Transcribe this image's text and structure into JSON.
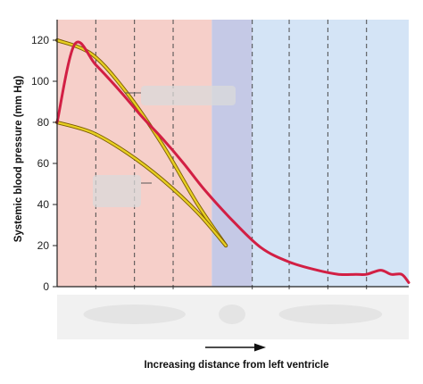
{
  "chart_data": {
    "type": "line",
    "title": "",
    "xlabel": "Increasing distance from left ventricle",
    "ylabel": "Systemic blood pressure (mm Hg)",
    "ylim": [
      0,
      130
    ],
    "yticks": [
      0,
      20,
      40,
      60,
      80,
      100,
      120
    ],
    "grid": false,
    "x_unit": "relative distance (0 = left ventricle, 1 = end of circulation)",
    "regions": [
      {
        "start": 0.0,
        "end": 0.44,
        "color": "#f6cfc9"
      },
      {
        "start": 0.44,
        "end": 0.555,
        "color": "#c5c9e6"
      },
      {
        "start": 0.555,
        "end": 1.0,
        "color": "#d4e4f6"
      }
    ],
    "dividers": [
      0.11,
      0.22,
      0.33,
      0.555,
      0.66,
      0.77,
      0.88
    ],
    "colors": {
      "pressure": "#d21f44",
      "envelope": "#e7cf22",
      "envelope_edge": "#7a5a00",
      "divider": "#4a4a4a",
      "label_placeholder": "#d9d9d9"
    },
    "series": [
      {
        "role": "pressure",
        "x": [
          0.0,
          0.05,
          0.11,
          0.18,
          0.24,
          0.3,
          0.36,
          0.42,
          0.5,
          0.58,
          0.66,
          0.74,
          0.8,
          0.85,
          0.88,
          0.92,
          0.95,
          0.98,
          1.0
        ],
        "y": [
          80,
          118,
          108,
          95,
          83,
          72,
          60,
          47,
          32,
          19,
          12,
          8,
          6,
          6,
          6,
          8,
          6,
          6,
          2
        ]
      },
      {
        "role": "systolic-envelope",
        "x": [
          0.0,
          0.1,
          0.2,
          0.3,
          0.4,
          0.48
        ],
        "y": [
          120,
          113,
          94,
          69,
          40,
          20
        ]
      },
      {
        "role": "diastolic-envelope",
        "x": [
          0.0,
          0.1,
          0.2,
          0.3,
          0.4,
          0.48
        ],
        "y": [
          80,
          75,
          65,
          52,
          36,
          20
        ]
      }
    ]
  }
}
